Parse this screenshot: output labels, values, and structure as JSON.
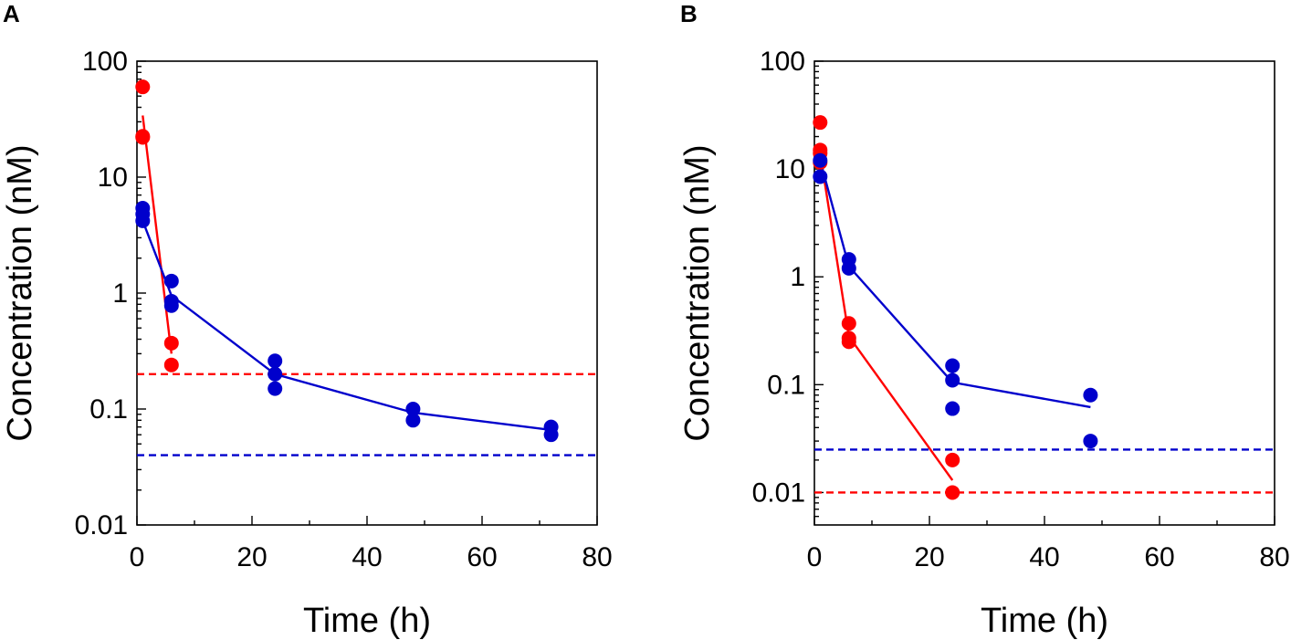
{
  "chart_data": [
    {
      "panel": "A",
      "type": "scatter",
      "xlabel": "Time (h)",
      "ylabel": "Concentration  (nM)",
      "yscale": "log",
      "xlim": [
        0,
        80
      ],
      "ylim": [
        0.01,
        100
      ],
      "xticks": [
        0,
        20,
        40,
        60,
        80
      ],
      "yticks": [
        {
          "value": 0.01,
          "label": "0.01"
        },
        {
          "value": 0.1,
          "label": "0.1"
        },
        {
          "value": 1,
          "label": "1"
        },
        {
          "value": 10,
          "label": "10"
        },
        {
          "value": 100,
          "label": "100"
        }
      ],
      "series": [
        {
          "name": "red",
          "color": "#ff0000",
          "points": [
            [
              1,
              60
            ],
            [
              1,
              22.5
            ],
            [
              1,
              22
            ],
            [
              6,
              0.37
            ],
            [
              6,
              0.24
            ]
          ],
          "fit": [
            [
              1,
              34
            ],
            [
              6,
              0.3
            ]
          ]
        },
        {
          "name": "blue",
          "color": "#0000cc",
          "points": [
            [
              1,
              5.4
            ],
            [
              1,
              4.8
            ],
            [
              1,
              4.2
            ],
            [
              6,
              1.27
            ],
            [
              6,
              0.85
            ],
            [
              6,
              0.78
            ],
            [
              24,
              0.26
            ],
            [
              24,
              0.2
            ],
            [
              24,
              0.15
            ],
            [
              48,
              0.1
            ],
            [
              48,
              0.08
            ],
            [
              72,
              0.07
            ],
            [
              72,
              0.06
            ]
          ],
          "fit": [
            [
              1,
              4.2
            ],
            [
              6,
              0.95
            ],
            [
              24,
              0.2
            ],
            [
              48,
              0.093
            ],
            [
              72,
              0.066
            ]
          ]
        }
      ],
      "hlines": [
        {
          "value": 0.2,
          "color": "#ff0000"
        },
        {
          "value": 0.04,
          "color": "#0000cc"
        }
      ]
    },
    {
      "panel": "B",
      "type": "scatter",
      "xlabel": "Time (h)",
      "ylabel": "Concentration  (nM)",
      "yscale": "log",
      "xlim": [
        0,
        80
      ],
      "ylim": [
        0.005,
        100
      ],
      "xticks": [
        0,
        20,
        40,
        60,
        80
      ],
      "yticks": [
        {
          "value": 0.01,
          "label": "0.01"
        },
        {
          "value": 0.1,
          "label": "0.1"
        },
        {
          "value": 1,
          "label": "1"
        },
        {
          "value": 10,
          "label": "10"
        },
        {
          "value": 100,
          "label": "100"
        }
      ],
      "series": [
        {
          "name": "red",
          "color": "#ff0000",
          "points": [
            [
              1,
              27
            ],
            [
              1,
              15
            ],
            [
              1,
              14
            ],
            [
              1,
              11.5
            ],
            [
              6,
              0.37
            ],
            [
              6,
              0.27
            ],
            [
              6,
              0.25
            ],
            [
              24,
              0.02
            ],
            [
              24,
              0.01
            ]
          ],
          "fit": [
            [
              1,
              14
            ],
            [
              6,
              0.28
            ],
            [
              24,
              0.013
            ]
          ]
        },
        {
          "name": "blue",
          "color": "#0000cc",
          "points": [
            [
              1,
              12
            ],
            [
              1,
              8.5
            ],
            [
              6,
              1.45
            ],
            [
              6,
              1.2
            ],
            [
              24,
              0.15
            ],
            [
              24,
              0.11
            ],
            [
              24,
              0.06
            ],
            [
              48,
              0.08
            ],
            [
              48,
              0.03
            ]
          ],
          "fit": [
            [
              1,
              12
            ],
            [
              6,
              1.25
            ],
            [
              24,
              0.105
            ],
            [
              48,
              0.062
            ]
          ]
        }
      ],
      "hlines": [
        {
          "value": 0.025,
          "color": "#0000cc"
        },
        {
          "value": 0.01,
          "color": "#ff0000"
        }
      ]
    }
  ]
}
